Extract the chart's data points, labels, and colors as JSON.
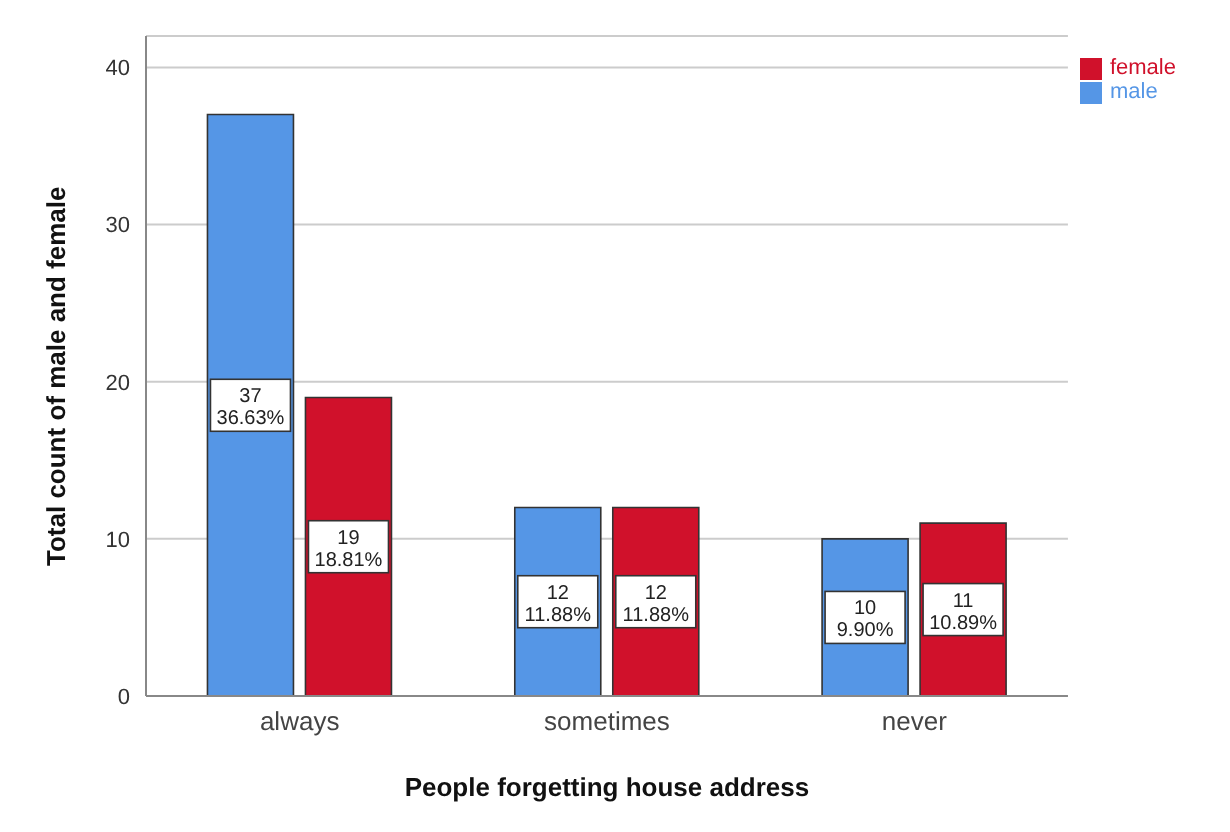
{
  "chart_data": {
    "type": "bar",
    "xlabel": "People forgetting house address",
    "ylabel": "Total count of male and female",
    "categories": [
      "always",
      "sometimes",
      "never"
    ],
    "series": [
      {
        "name": "male",
        "color": "#5596e6",
        "values": [
          37,
          12,
          10
        ],
        "value_labels": [
          "37\n36.63%",
          "12\n11.88%",
          "10\n9.90%"
        ]
      },
      {
        "name": "female",
        "color": "#d0112b",
        "values": [
          19,
          12,
          11
        ],
        "value_labels": [
          "19\n18.81%",
          "12\n11.88%",
          "11\n10.89%"
        ]
      }
    ],
    "ylim": [
      0,
      42
    ],
    "yticks": [
      0,
      10,
      20,
      30,
      40
    ],
    "grid": "y",
    "legend": "top right"
  }
}
